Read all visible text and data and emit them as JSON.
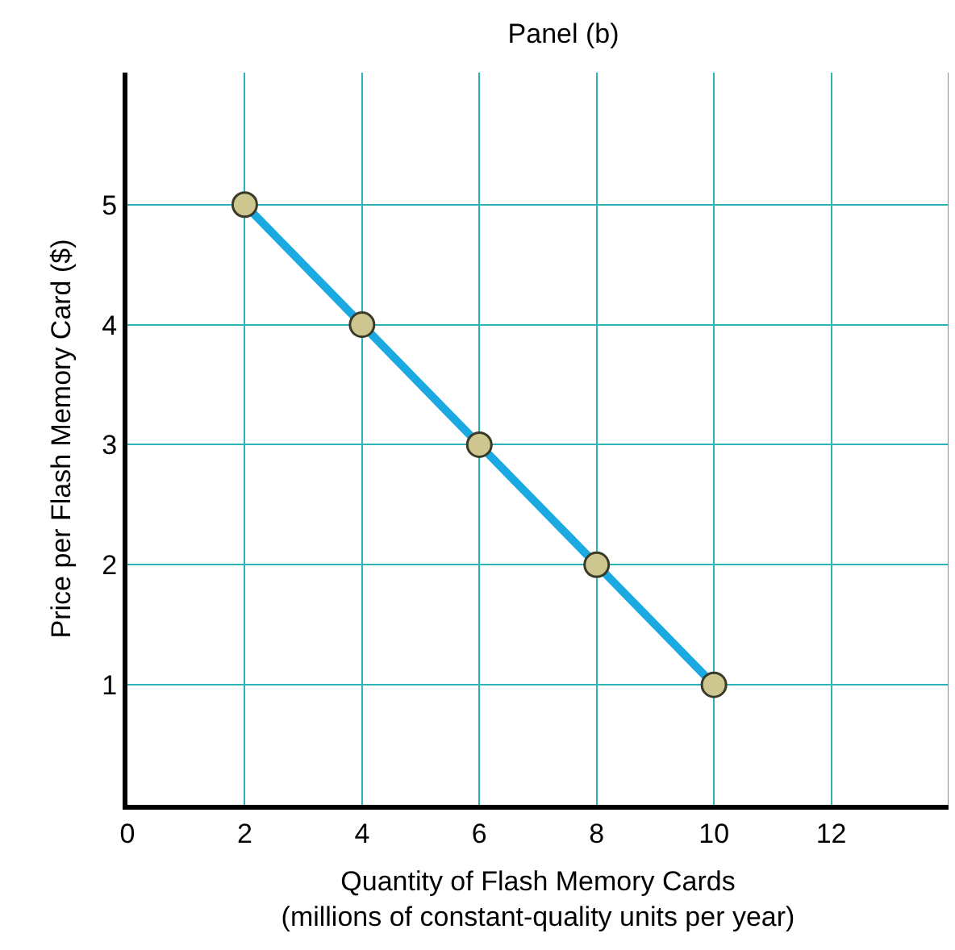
{
  "chart_data": {
    "type": "line",
    "title": "Panel (b)",
    "xlabel": "Quantity of Flash Memory Cards\n(millions of constant-quality units per year)",
    "ylabel": "Price per Flash Memory Card ($)",
    "x": [
      2,
      4,
      6,
      8,
      10
    ],
    "series": [
      {
        "color": "#1ba9e1",
        "values": [
          5,
          4,
          3,
          2,
          1
        ]
      }
    ],
    "xlim": [
      0,
      14
    ],
    "xticks": [
      0,
      2,
      4,
      6,
      8,
      10,
      12
    ],
    "ylim": [
      0,
      6.1
    ],
    "yticks": [
      1,
      2,
      3,
      4,
      5
    ],
    "grid": true,
    "marker": "circle",
    "line_style": "solid"
  }
}
